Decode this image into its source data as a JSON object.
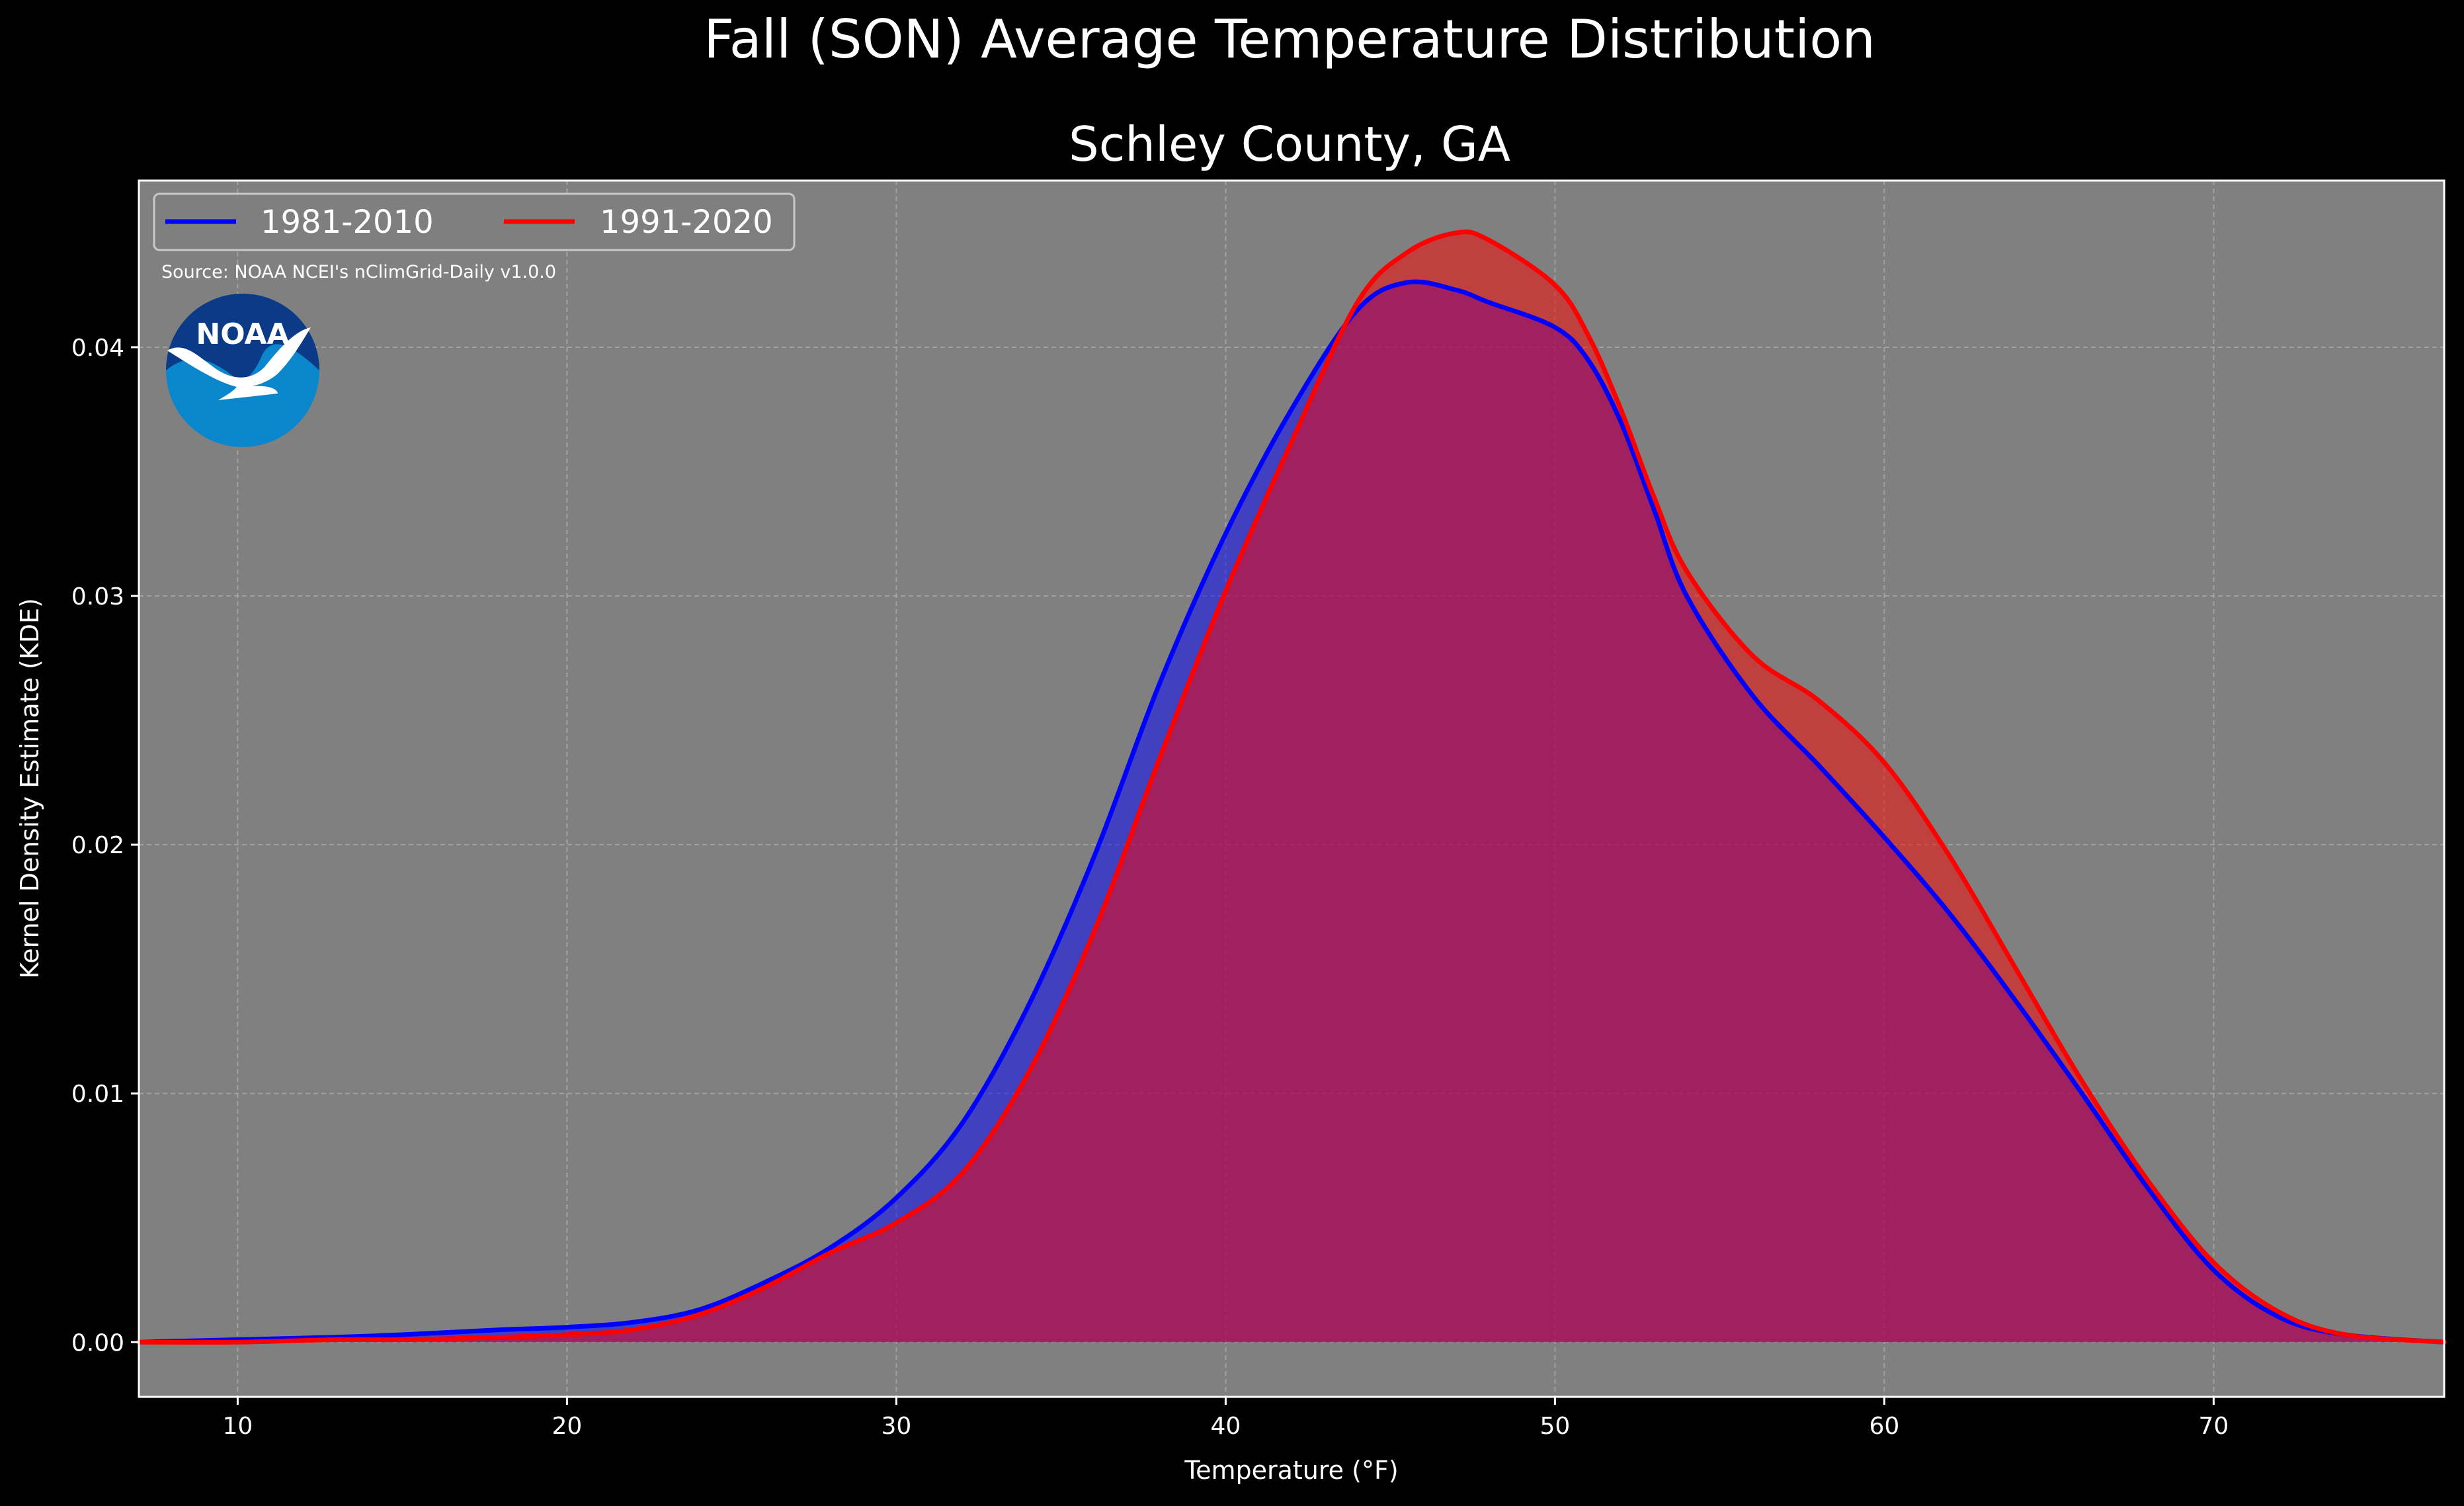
{
  "chart_data": {
    "type": "area",
    "title": "Fall (SON) Average Temperature Distribution",
    "subtitle": "Schley County, GA",
    "xlabel": "Temperature (°F)",
    "ylabel": "Kernel Density Estimate (KDE)",
    "xlim": [
      7,
      77
    ],
    "ylim": [
      -0.0022,
      0.0467
    ],
    "x_ticks": [
      10,
      20,
      30,
      40,
      50,
      60,
      70
    ],
    "y_ticks": [
      0.0,
      0.01,
      0.02,
      0.03,
      0.04
    ],
    "x_tick_labels": [
      "10",
      "20",
      "30",
      "40",
      "50",
      "60",
      "70"
    ],
    "y_tick_labels": [
      "0.00",
      "0.01",
      "0.02",
      "0.03",
      "0.04"
    ],
    "grid": true,
    "legend_position": "top-left",
    "source_note": "Source: NOAA NCEI's nClimGrid-Daily v1.0.0",
    "logo_text": "NOAA",
    "colors": {
      "background": "#000000",
      "plot_background": "#808080",
      "series_1981": "#0000ff",
      "series_1991": "#ff0000"
    },
    "series": [
      {
        "name": "1981-2010",
        "color": "#0000ff",
        "x": [
          7,
          10,
          13,
          15,
          18,
          20,
          22,
          24,
          26,
          28,
          30,
          32,
          34,
          36,
          38,
          40,
          42,
          44,
          45.5,
          47,
          48,
          50,
          51,
          52,
          53,
          54,
          56,
          58,
          60,
          62,
          64,
          66,
          68,
          70,
          72,
          74,
          77
        ],
        "y": [
          0.0,
          0.0001,
          0.0002,
          0.0003,
          0.0005,
          0.0006,
          0.0008,
          0.0013,
          0.0024,
          0.0038,
          0.0058,
          0.0088,
          0.0135,
          0.0195,
          0.0265,
          0.0325,
          0.0375,
          0.0415,
          0.0426,
          0.0423,
          0.0418,
          0.0408,
          0.0395,
          0.037,
          0.0335,
          0.03,
          0.026,
          0.0232,
          0.0203,
          0.0172,
          0.0137,
          0.01,
          0.0062,
          0.0029,
          0.001,
          0.0003,
          0.0
        ]
      },
      {
        "name": "1991-2020",
        "color": "#ff0000",
        "x": [
          7,
          10,
          13,
          15,
          18,
          20,
          22,
          24,
          26,
          28,
          30,
          32,
          34,
          36,
          38,
          40,
          42,
          44,
          45.5,
          47,
          48,
          50,
          51,
          52,
          53,
          54,
          56,
          58,
          60,
          62,
          64,
          66,
          68,
          70,
          72,
          74,
          77
        ],
        "y": [
          0.0,
          0.0,
          0.0001,
          0.0001,
          0.0002,
          0.0003,
          0.0005,
          0.0011,
          0.0022,
          0.0036,
          0.0048,
          0.0068,
          0.0108,
          0.0165,
          0.0235,
          0.0302,
          0.0362,
          0.0418,
          0.0438,
          0.0446,
          0.0443,
          0.0425,
          0.0405,
          0.0375,
          0.034,
          0.031,
          0.0276,
          0.0258,
          0.0233,
          0.0195,
          0.015,
          0.0105,
          0.0065,
          0.0032,
          0.0012,
          0.0003,
          0.0
        ]
      }
    ]
  }
}
